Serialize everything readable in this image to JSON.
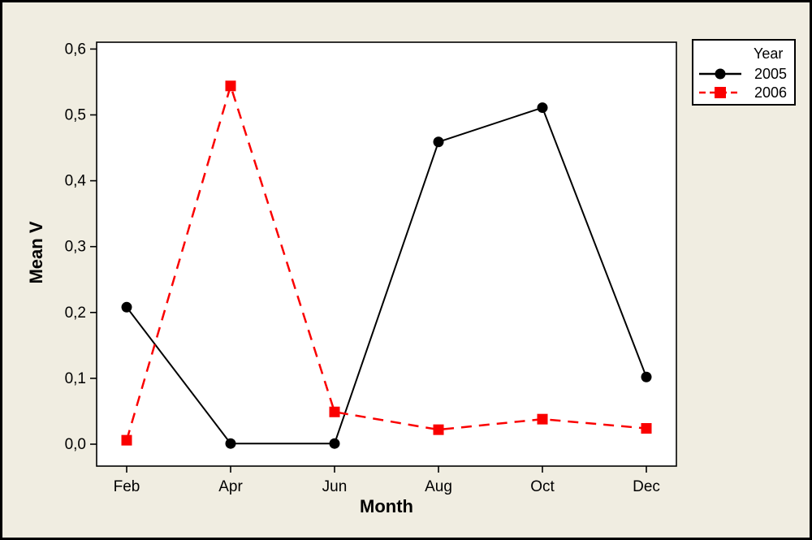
{
  "window": {
    "background_color": "#F0EDE1",
    "plot_background_color": "#FFFFFF",
    "border_color": "#000000"
  },
  "legend": {
    "title": "Year",
    "entries": [
      {
        "label": "2005",
        "color": "#000000",
        "marker": "circle",
        "line_style": "solid"
      },
      {
        "label": "2006",
        "color": "#FA0000",
        "marker": "square",
        "line_style": "dashed"
      }
    ]
  },
  "chart_data": {
    "type": "line",
    "title": "",
    "xlabel": "Month",
    "ylabel": "Mean V",
    "categories": [
      "Feb",
      "Apr",
      "Jun",
      "Aug",
      "Oct",
      "Dec"
    ],
    "series": [
      {
        "name": "2005",
        "color": "#000000",
        "marker": "circle",
        "line_style": "solid",
        "values": [
          0.208,
          0.001,
          0.001,
          0.459,
          0.511,
          0.102
        ]
      },
      {
        "name": "2006",
        "color": "#FA0000",
        "marker": "square",
        "line_style": "dashed",
        "values": [
          0.006,
          0.544,
          0.049,
          0.022,
          0.038,
          0.024
        ]
      }
    ],
    "ylim": [
      0.0,
      0.6
    ],
    "yticks": [
      0.0,
      0.1,
      0.2,
      0.3,
      0.4,
      0.5,
      0.6
    ],
    "decimal_separator": ",",
    "grid": false,
    "legend_position": "outside-top-right"
  }
}
